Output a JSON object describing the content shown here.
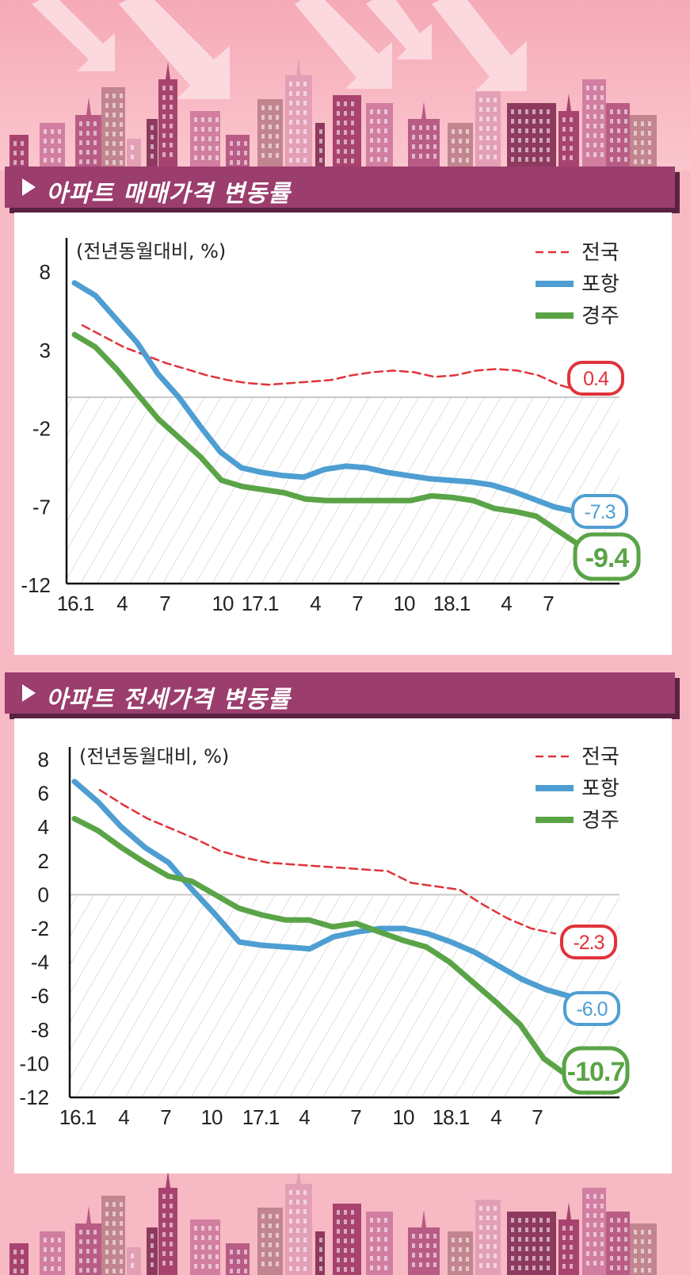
{
  "header1": {
    "title": "아파트 매매가격 변동률"
  },
  "header2": {
    "title": "아파트 전세가격 변동률"
  },
  "colors": {
    "nation": "#e0333a",
    "pohang": "#4e9ed2",
    "gyeongju": "#5aa447",
    "header_bg": "#9b3d6d"
  },
  "chart_data": [
    {
      "type": "line",
      "unit_label": "(전년동월대비, %)",
      "x_tick_labels": [
        "16.1",
        "4",
        "7",
        "10",
        "17.1",
        "4",
        "7",
        "10",
        "18.1",
        "4",
        "7"
      ],
      "y_tick_labels": [
        "8",
        "3",
        "-2",
        "-7",
        "-12"
      ],
      "ylim": [
        -12,
        10
      ],
      "legend_position": "top-right",
      "series": [
        {
          "name": "전국",
          "style": "dashed",
          "values": [
            4.6,
            3.9,
            3.2,
            2.7,
            2.2,
            1.8,
            1.4,
            1.1,
            0.9,
            0.8,
            0.9,
            1.0,
            1.1,
            1.4,
            1.6,
            1.7,
            1.6,
            1.3,
            1.4,
            1.7,
            1.8,
            1.7,
            1.4,
            0.8,
            0.4,
            0.4
          ],
          "end_label": "0.4"
        },
        {
          "name": "포항",
          "style": "solid",
          "values": [
            7.3,
            6.5,
            5.0,
            3.5,
            1.5,
            0.0,
            -1.8,
            -3.5,
            -4.5,
            -4.8,
            -5.0,
            -5.1,
            -4.6,
            -4.4,
            -4.5,
            -4.8,
            -5.0,
            -5.2,
            -5.3,
            -5.4,
            -5.6,
            -6.0,
            -6.5,
            -7.0,
            -7.3
          ],
          "end_label": "-7.3"
        },
        {
          "name": "경주",
          "style": "solid",
          "values": [
            4.0,
            3.2,
            1.8,
            0.2,
            -1.4,
            -2.6,
            -3.8,
            -5.3,
            -5.7,
            -5.9,
            -6.1,
            -6.5,
            -6.6,
            -6.6,
            -6.6,
            -6.6,
            -6.6,
            -6.3,
            -6.4,
            -6.6,
            -7.1,
            -7.3,
            -7.6,
            -8.5,
            -9.4
          ],
          "end_label": "-9.4"
        }
      ]
    },
    {
      "type": "line",
      "unit_label": "(전년동월대비, %)",
      "x_tick_labels": [
        "16.1",
        "4",
        "7",
        "10",
        "17.1",
        "4",
        "7",
        "10",
        "18.1",
        "4",
        "7"
      ],
      "y_tick_labels": [
        "8",
        "6",
        "4",
        "2",
        "0",
        "-2",
        "-4",
        "-6",
        "-8",
        "-10",
        "-12"
      ],
      "ylim": [
        -12,
        8
      ],
      "legend_position": "top-right",
      "series": [
        {
          "name": "전국",
          "style": "dashed",
          "values": [
            6.2,
            5.3,
            4.5,
            3.9,
            3.3,
            2.6,
            2.2,
            1.9,
            1.8,
            1.7,
            1.6,
            1.5,
            1.4,
            0.7,
            0.5,
            0.3,
            -0.6,
            -1.4,
            -2.0,
            -2.3
          ],
          "end_label": "-2.3"
        },
        {
          "name": "포항",
          "style": "solid",
          "values": [
            6.7,
            5.5,
            4.0,
            2.8,
            1.9,
            0.3,
            -1.2,
            -2.8,
            -3.0,
            -3.1,
            -3.2,
            -2.5,
            -2.2,
            -2.0,
            -2.0,
            -2.3,
            -2.8,
            -3.4,
            -4.2,
            -5.0,
            -5.6,
            -6.0
          ],
          "end_label": "-6.0"
        },
        {
          "name": "경주",
          "style": "solid",
          "values": [
            4.5,
            3.8,
            2.8,
            1.9,
            1.1,
            0.8,
            0.0,
            -0.8,
            -1.2,
            -1.5,
            -1.5,
            -1.9,
            -1.7,
            -2.2,
            -2.7,
            -3.1,
            -4.0,
            -5.2,
            -6.4,
            -7.7,
            -9.7,
            -10.7
          ],
          "end_label": "-10.7"
        }
      ]
    }
  ]
}
